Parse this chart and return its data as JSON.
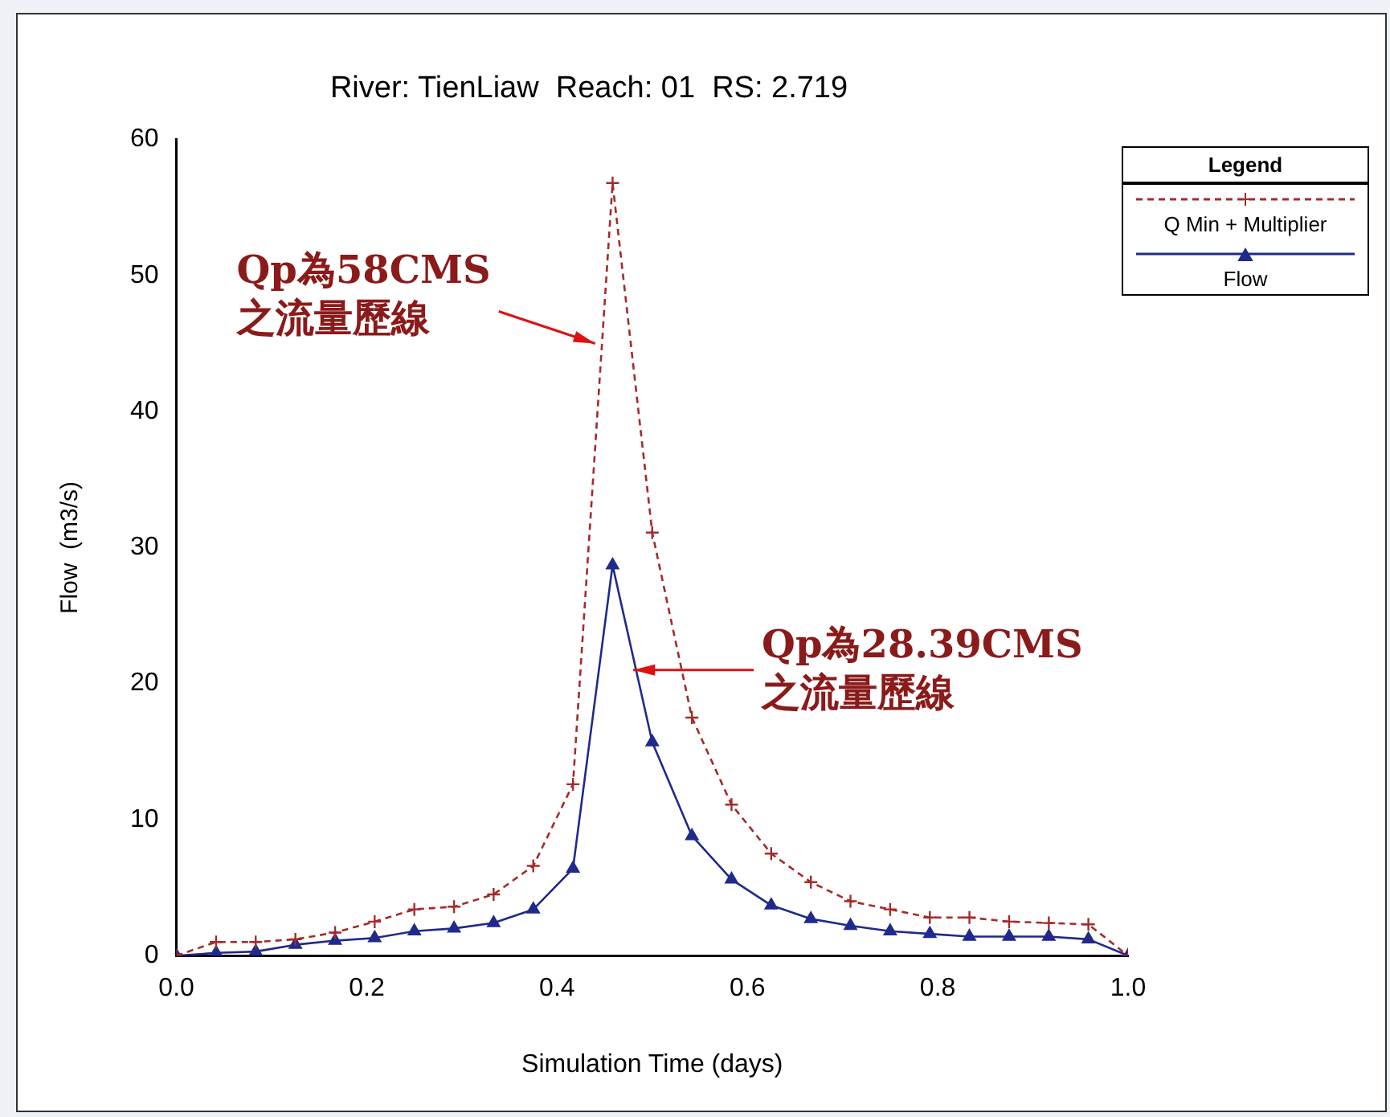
{
  "chart_data": {
    "type": "line",
    "title": "River: TienLiaw  Reach: 01  RS: 2.719",
    "xlabel": "Simulation Time (days)",
    "ylabel": "Flow  (m3/s)",
    "legend_title": "Legend",
    "legend": "top right",
    "grid": false,
    "x": [
      0,
      0.0417,
      0.0833,
      0.125,
      0.1667,
      0.2083,
      0.25,
      0.2917,
      0.3333,
      0.375,
      0.4167,
      0.4583,
      0.5,
      0.5417,
      0.5833,
      0.625,
      0.6667,
      0.7083,
      0.75,
      0.7917,
      0.8333,
      0.875,
      0.9167,
      0.9583,
      1.0
    ],
    "xlim": [
      0,
      1
    ],
    "xticks": [
      {
        "value": 0,
        "label": "0.0"
      },
      0.2,
      0.4,
      0.6,
      0.8,
      {
        "value": 1,
        "label": "1.0"
      }
    ],
    "ylim": [
      0,
      60
    ],
    "yticks": [
      0,
      10,
      20,
      30,
      40,
      50,
      60
    ],
    "series": [
      {
        "name": "Q Min + Multiplier",
        "color": "#a52a2a",
        "marker": "cross",
        "line_style": "dashed",
        "values": [
          0,
          1.0,
          1.0,
          1.2,
          1.7,
          2.5,
          3.4,
          3.6,
          4.5,
          6.6,
          12.6,
          56.8,
          31.1,
          17.5,
          11.1,
          7.5,
          5.4,
          4.0,
          3.4,
          2.8,
          2.8,
          2.5,
          2.4,
          2.3,
          0
        ]
      },
      {
        "name": "Flow",
        "color": "#1f2a8c",
        "marker": "triangle",
        "line_style": "solid",
        "values": [
          0,
          0.2,
          0.3,
          0.8,
          1.1,
          1.3,
          1.8,
          2.0,
          2.4,
          3.4,
          6.4,
          28.7,
          15.7,
          8.8,
          5.6,
          3.7,
          2.7,
          2.2,
          1.8,
          1.6,
          1.4,
          1.4,
          1.4,
          1.2,
          0
        ]
      }
    ],
    "annotations": [
      {
        "text": "Qp為58CMS\n之流量歷線",
        "x": 0.44,
        "y": 45
      },
      {
        "text": "Qp為28.39CMS\n之流量歷線",
        "x": 0.48,
        "y": 21
      }
    ]
  }
}
